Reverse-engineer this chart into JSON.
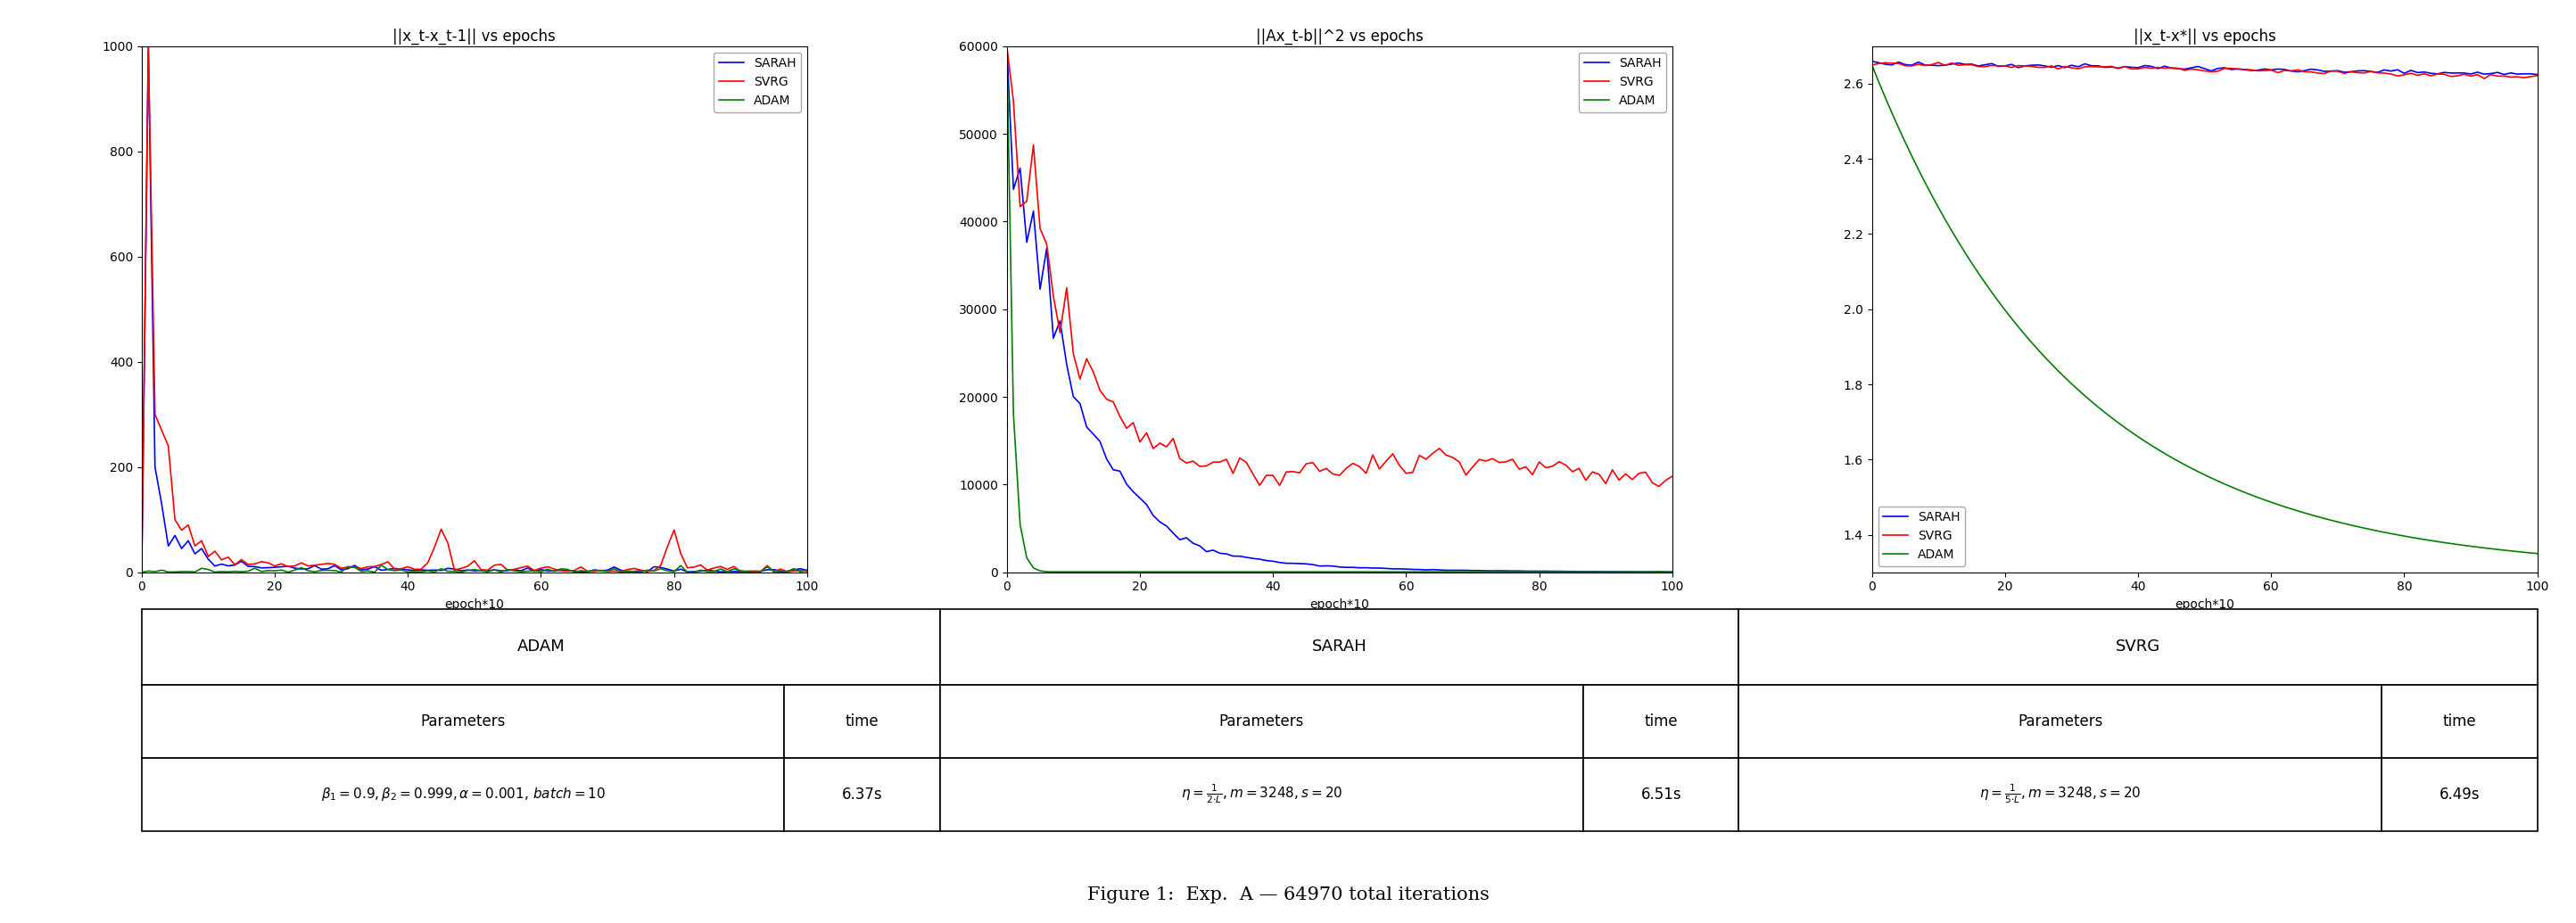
{
  "plot1_title": "||x_t-x_t-1|| vs epochs",
  "plot2_title": "||Ax_t-b||^2 vs epochs",
  "plot3_title": "||x_t-x*|| vs epochs",
  "xlabel": "epoch*10",
  "color_sarah": "#0000ff",
  "color_svrg": "#ff0000",
  "color_adam": "#008000",
  "plot1_ylim": [
    0,
    1000
  ],
  "plot2_ylim": [
    0,
    60000
  ],
  "plot3_ylim": [
    1.3,
    2.7
  ],
  "xlim": [
    0,
    100
  ],
  "adam_params": "$\\beta_1=0.9, \\beta_2=0.999, \\alpha=0.001$, $batch=10$",
  "adam_time": "6.37s",
  "sarah_params": "$\\eta=\\frac{1}{2{\\cdot}L},m=3248,s=20$",
  "sarah_time": "6.51s",
  "svrg_params": "$\\eta=\\frac{1}{5{\\cdot}L},m=3248,s=20$",
  "svrg_time": "6.49s",
  "figure_caption": "Figure 1:  Exp.  A — 64970 total iterations"
}
